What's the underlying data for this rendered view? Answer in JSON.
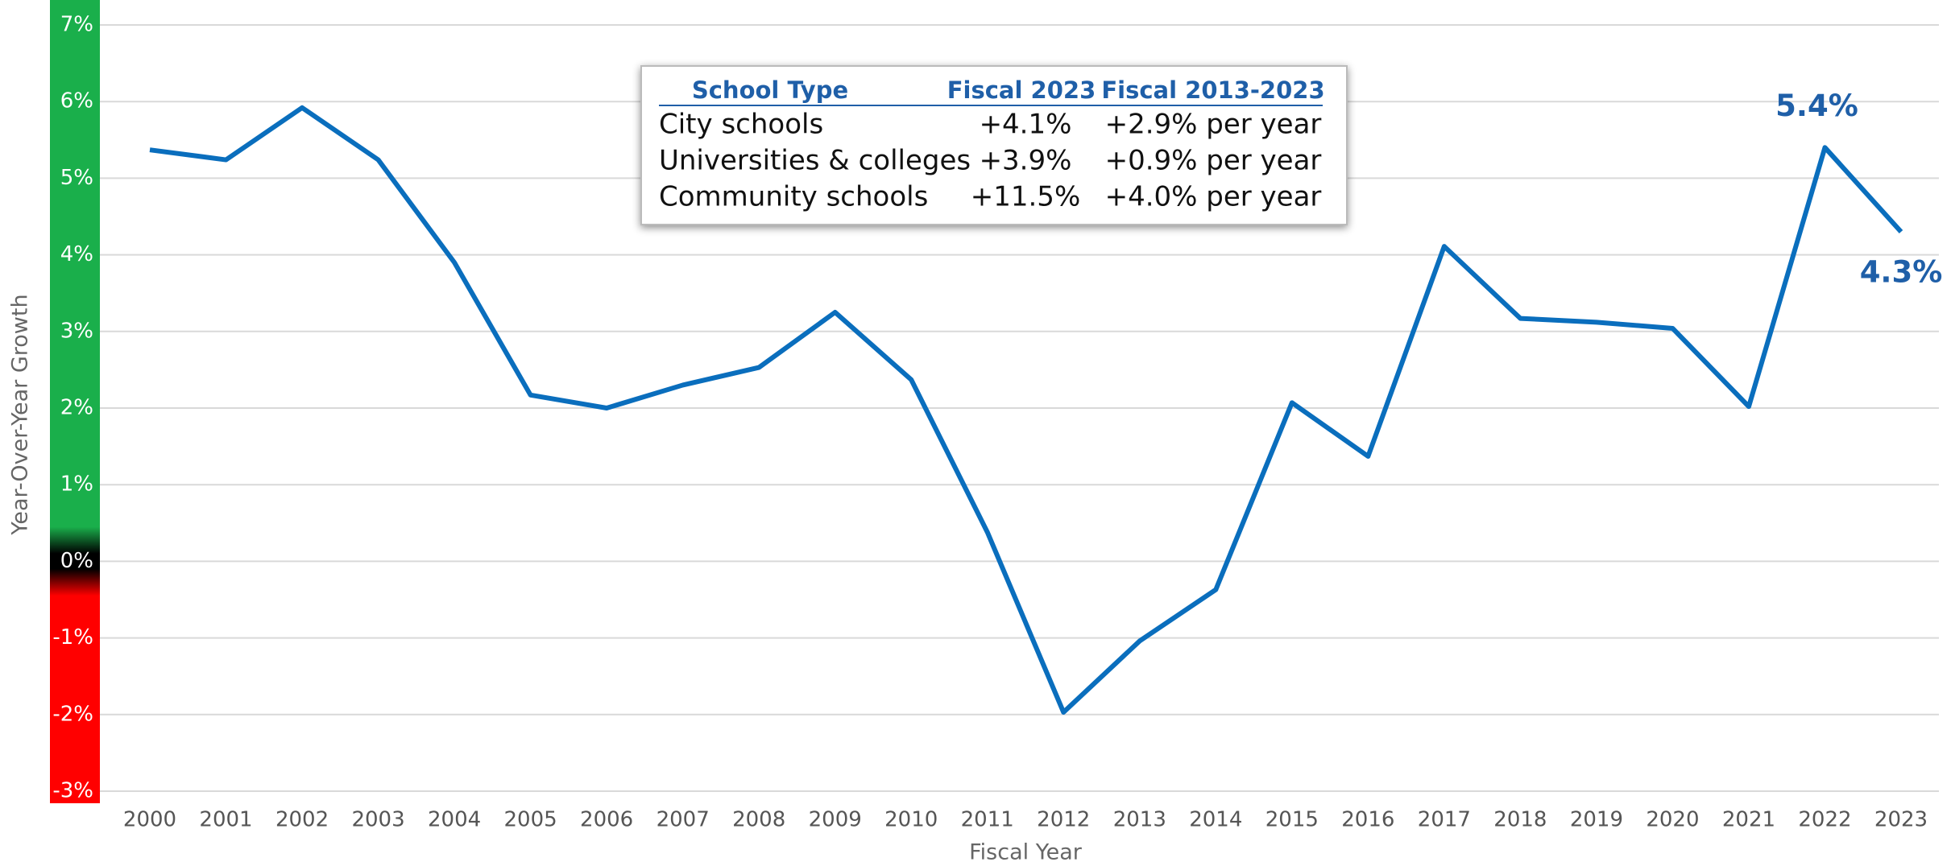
{
  "chart_data": {
    "type": "line",
    "x_label": "Fiscal Year",
    "y_label": "Year-Over-Year Growth",
    "categories": [
      "2000",
      "2001",
      "2002",
      "2003",
      "2004",
      "2005",
      "2006",
      "2007",
      "2008",
      "2009",
      "2010",
      "2011",
      "2012",
      "2013",
      "2014",
      "2015",
      "2016",
      "2017",
      "2018",
      "2019",
      "2020",
      "2021",
      "2022",
      "2023"
    ],
    "series": [
      {
        "color": "#0a6ebd",
        "values": [
          5.37,
          5.24,
          5.92,
          5.24,
          3.9,
          2.17,
          2.0,
          2.3,
          2.53,
          3.25,
          2.37,
          0.38,
          -1.97,
          -1.04,
          -0.37,
          2.07,
          1.37,
          4.11,
          3.17,
          3.12,
          3.04,
          2.02,
          5.4,
          4.3
        ],
        "value_labels": [
          null,
          null,
          null,
          null,
          null,
          null,
          null,
          null,
          null,
          null,
          null,
          null,
          null,
          null,
          null,
          null,
          null,
          null,
          null,
          null,
          null,
          null,
          "5.4%",
          "4.3%"
        ]
      }
    ],
    "ylim": [
      -3,
      7
    ],
    "yticks": [
      {
        "value": 7,
        "label": "7%"
      },
      {
        "value": 6,
        "label": "6%"
      },
      {
        "value": 5,
        "label": "5%"
      },
      {
        "value": 4,
        "label": "4%"
      },
      {
        "value": 3,
        "label": "3%"
      },
      {
        "value": 2,
        "label": "2%"
      },
      {
        "value": 1,
        "label": "1%"
      },
      {
        "value": 0,
        "label": "0%"
      },
      {
        "value": -1,
        "label": "-1%"
      },
      {
        "value": -2,
        "label": "-2%"
      },
      {
        "value": -3,
        "label": "-3%"
      }
    ],
    "grid": true,
    "table": {
      "columns": [
        "School Type",
        "Fiscal 2023",
        "Fiscal 2013-2023"
      ],
      "rows": [
        [
          "City schools",
          "+4.1%",
          "+2.9% per year"
        ],
        [
          "Universities & colleges",
          "+3.9%",
          "+0.9% per year"
        ],
        [
          "Community schools",
          "+11.5%",
          "+4.0% per year"
        ]
      ]
    }
  }
}
